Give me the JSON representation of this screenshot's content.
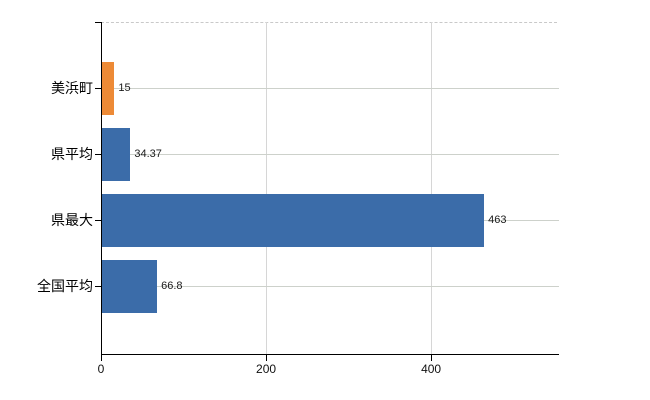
{
  "chart_data": {
    "type": "bar",
    "orientation": "horizontal",
    "title": "",
    "xlabel": "",
    "ylabel": "",
    "categories": [
      "美浜町",
      "県平均",
      "県最大",
      "全国平均"
    ],
    "values": [
      15,
      34.37,
      463,
      66.8
    ],
    "value_labels": [
      "15",
      "34.37",
      "463",
      "66.8"
    ],
    "bar_colors": [
      "#ed8a36",
      "#3b6ca9",
      "#3b6ca9",
      "#3b6ca9"
    ],
    "xlim": [
      0,
      555
    ],
    "xticks": [
      0,
      200,
      400
    ],
    "xtick_labels": [
      "0",
      "200",
      "400"
    ],
    "grid": true,
    "legend": false,
    "colors": {
      "highlight_bar": "#ed8a36",
      "default_bar": "#3b6ca9",
      "gridline": "#d2d4d0",
      "axis": "#000000",
      "background": "#ffffff"
    }
  }
}
